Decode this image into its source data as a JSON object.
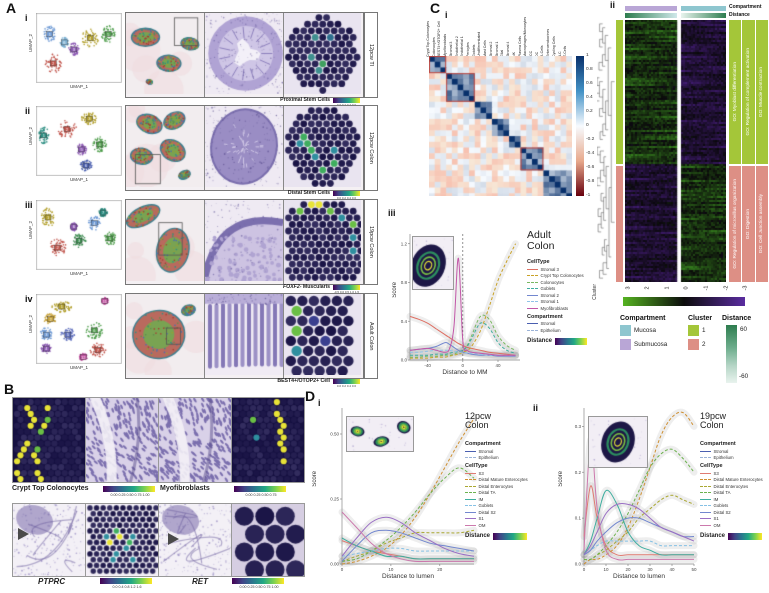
{
  "figure": {
    "panel_a": {
      "label": "A",
      "umap_xlabel": "UMAP_1",
      "umap_ylabel": "UMAP_2",
      "rows": [
        {
          "numeral": "i",
          "sample": "12pcw TI",
          "colorbar_gene": "",
          "colorbar_label": "Proximal Stem Cells",
          "colorbar_ticks": "0.0 0.2 0.4 0.6"
        },
        {
          "numeral": "ii",
          "sample": "12pcw Colon",
          "colorbar_gene": "",
          "colorbar_label": "Distal Stem Cells",
          "colorbar_ticks": "0.0 0.2 0.4 0.6"
        },
        {
          "numeral": "iii",
          "sample": "19pcw Colon",
          "colorbar_gene": "FOXF2-",
          "colorbar_label": " Muscularis",
          "colorbar_ticks": "-0.5 0.0 0.5 1.0 1.5"
        },
        {
          "numeral": "iv",
          "sample": "Adult Colon",
          "colorbar_gene": "",
          "colorbar_label": "BEST4+/OTOP2+ Cell",
          "colorbar_ticks": "0.0 0.2 0.4 0.6"
        }
      ]
    },
    "panel_b": {
      "label": "B",
      "captions": [
        {
          "label": "Crypt Top Colonocytes",
          "italic": false,
          "ticks": "0.00 0.25 0.50 0.75 1.00"
        },
        {
          "label": "Myofibroblasts",
          "italic": false,
          "ticks": "0.00 0.25 0.50 0.75"
        },
        {
          "label": "PTPRC",
          "italic": true,
          "ticks": "0.0 0.4 0.8 1.2 1.6"
        },
        {
          "label": "RET",
          "italic": true,
          "ticks": "0.00 0.25 0.50 0.75 1.00"
        }
      ]
    },
    "panel_c": {
      "label": "C",
      "i": {
        "numeral": "i",
        "cell_types": [
          "Crypt Top Colonocytes",
          "Colonocytes",
          "BEST4+/OTOP2+ Cell",
          "Myofibroblasts",
          "Stromal 3",
          "Endothelial 2",
          "Endothelial 1",
          "Pericytes",
          "Goblets",
          "Undifferentiated",
          "Mast Cells",
          "Stromal 2",
          "Stromal 1",
          "Glial",
          "Stromal 4",
          "NK",
          "Plasma Cells",
          "Macrophages/Monocytes",
          "ICC",
          "DC",
          "B-Cells",
          "Enteroendocrines",
          "Cycling Cells",
          "ILC",
          "T-Cells"
        ],
        "colorbar_ticks": [
          "1",
          "0.8",
          "0.6",
          "0.4",
          "0.2",
          "0",
          "-0.2",
          "-0.4",
          "-0.6",
          "-0.8",
          "-1"
        ]
      },
      "ii": {
        "numeral": "ii",
        "annotation_compartment": "Compartment",
        "annotation_distance": "Distance",
        "go_cluster1": [
          "GO: Myoblast differentiation",
          "GO: Regulation of complement activation",
          "GO: Muscle contraction"
        ],
        "go_cluster2": [
          "GO: Regulation of microvillus organization",
          "GO: Digestion",
          "GO: Cell Junction assembly"
        ],
        "scale_axis_label": "Cluster",
        "scale_ticks": [
          "3",
          "2",
          "1",
          "0",
          "-1",
          "-2",
          "-3"
        ],
        "legend_compartment_title": "Compartment",
        "legend_compartment_items": [
          {
            "label": "Mucosa",
            "color": "#8ec6cf"
          },
          {
            "label": "Submucosa",
            "color": "#b9a6d6"
          }
        ],
        "legend_cluster_title": "Cluster",
        "legend_cluster_items": [
          {
            "label": "1",
            "color": "#a4c639"
          },
          {
            "label": "2",
            "color": "#dd8f85"
          }
        ],
        "legend_distance_title": "Distance",
        "legend_distance_max": "60",
        "legend_distance_min": "-60"
      },
      "iii": {
        "numeral": "iii",
        "title": "Adult Colon",
        "ylabel": "Score",
        "xlabel": "Distance to MM",
        "legend_celltype_title": "CellType",
        "legend_compartment_title": "Compartment",
        "compartment_items": [
          {
            "label": "Stromal",
            "color": "#4a5fb0",
            "dash": false
          },
          {
            "label": "Epithelium",
            "color": "#9bb3d8",
            "dash": true
          }
        ],
        "legend_distance_title": "Distance"
      }
    },
    "panel_d": {
      "label": "D",
      "i": {
        "numeral": "i",
        "title": "12pcw Colon",
        "ylabel": "Score",
        "xlabel": "Distance to lumen"
      },
      "ii": {
        "numeral": "ii",
        "title": "19pcw Colon",
        "ylabel": "Score",
        "xlabel": "Distance to lumen"
      },
      "legend_compartment_title": "Compartment",
      "legend_celltype_title": "CellType",
      "legend_distance_title": "Distance",
      "compartment_items": [
        {
          "label": "Stromal",
          "color": "#4a5fb0",
          "dash": false
        },
        {
          "label": "Epithelium",
          "color": "#9bb3d8",
          "dash": true
        }
      ]
    }
  },
  "chart_data": [
    {
      "id": "celltype_correlation",
      "type": "heatmap",
      "title": "",
      "labels": [
        "Crypt Top Colonocytes",
        "Colonocytes",
        "BEST4+/OTOP2+ Cell",
        "Myofibroblasts",
        "Stromal 3",
        "Endothelial 2",
        "Endothelial 1",
        "Pericytes",
        "Goblets",
        "Undifferentiated",
        "Mast Cells",
        "Stromal 2",
        "Stromal 1",
        "Glial",
        "Stromal 4",
        "NK",
        "Plasma Cells",
        "Macrophages/Monocytes",
        "ICC",
        "DC",
        "B-Cells",
        "Enteroendocrines",
        "Cycling Cells",
        "ILC",
        "T-Cells"
      ],
      "colorbar_range": [
        1,
        -1
      ],
      "highlight_blocks": [
        [
          0,
          3
        ],
        [
          3,
          5
        ],
        [
          16,
          4
        ]
      ]
    },
    {
      "id": "go_module_heatmap",
      "type": "heatmap",
      "column_groups": [
        "Submucosa",
        "Mucosa"
      ],
      "row_clusters": [
        {
          "cluster": "1",
          "go_terms": [
            "GO: Myoblast differentiation",
            "GO: Regulation of complement activation",
            "GO: Muscle contraction"
          ]
        },
        {
          "cluster": "2",
          "go_terms": [
            "GO: Regulation of microvillus organization",
            "GO: Digestion",
            "GO: Cell Junction assembly"
          ]
        }
      ],
      "value_range": [
        3,
        -3
      ],
      "distance_range": [
        60,
        -60
      ]
    },
    {
      "id": "adult_colon_profile",
      "type": "line",
      "title": "Adult Colon",
      "xlabel": "Distance to MM",
      "ylabel": "Score",
      "xlim": [
        -60,
        65
      ],
      "ylim": [
        0,
        1.3
      ],
      "x_ticks": [
        -40,
        0,
        40
      ],
      "y_ticks": [
        0.0,
        0.4,
        0.8,
        1.2
      ],
      "y_tick_decimals": 1,
      "vline_x": 0,
      "x": [
        -60,
        -50,
        -40,
        -30,
        -20,
        -15,
        -10,
        -5,
        0,
        5,
        10,
        20,
        30,
        40,
        50,
        60
      ],
      "series": [
        {
          "name": "Stromal 3",
          "color": "#de6f63",
          "dash": false,
          "y": [
            0.45,
            0.42,
            0.38,
            0.32,
            0.26,
            0.23,
            0.2,
            0.17,
            0.15,
            0.13,
            0.12,
            0.1,
            0.08,
            0.07,
            0.06,
            0.05
          ]
        },
        {
          "name": "Crypt Top Colonocytes",
          "color": "#c9a227",
          "dash": true,
          "y": [
            0.02,
            0.02,
            0.02,
            0.03,
            0.03,
            0.04,
            0.05,
            0.06,
            0.08,
            0.1,
            0.14,
            0.3,
            0.55,
            0.82,
            1.02,
            1.2
          ]
        },
        {
          "name": "Colonocytes",
          "color": "#79b861",
          "dash": true,
          "y": [
            0.03,
            0.03,
            0.04,
            0.04,
            0.05,
            0.05,
            0.06,
            0.08,
            0.1,
            0.15,
            0.25,
            0.45,
            0.42,
            0.25,
            0.15,
            0.1
          ]
        },
        {
          "name": "Goblets",
          "color": "#3fae9f",
          "dash": true,
          "y": [
            0.05,
            0.05,
            0.05,
            0.06,
            0.06,
            0.07,
            0.08,
            0.09,
            0.1,
            0.14,
            0.22,
            0.38,
            0.33,
            0.18,
            0.1,
            0.07
          ]
        },
        {
          "name": "Stromal 2",
          "color": "#7287cf",
          "dash": false,
          "y": [
            0.1,
            0.11,
            0.12,
            0.14,
            0.18,
            0.16,
            0.13,
            0.1,
            0.08,
            0.07,
            0.06,
            0.05,
            0.05,
            0.04,
            0.04,
            0.04
          ]
        },
        {
          "name": "Stromal 1",
          "color": "#8fc3e8",
          "dash": true,
          "y": [
            0.08,
            0.08,
            0.09,
            0.1,
            0.1,
            0.1,
            0.09,
            0.08,
            0.08,
            0.07,
            0.07,
            0.06,
            0.05,
            0.05,
            0.05,
            0.05
          ]
        },
        {
          "name": "Myofibroblasts",
          "color": "#c257a8",
          "dash": false,
          "y": [
            0.1,
            0.11,
            0.12,
            0.1,
            0.08,
            0.12,
            0.35,
            1.05,
            0.2,
            0.1,
            0.08,
            0.07,
            0.06,
            0.05,
            0.05,
            0.05
          ]
        }
      ]
    },
    {
      "id": "colon_12pcw_profile",
      "type": "line",
      "title": "12pcw Colon",
      "xlabel": "Distance to lumen",
      "ylabel": "Score",
      "xlim": [
        0,
        27
      ],
      "ylim": [
        0,
        0.6
      ],
      "x_ticks": [
        0,
        10,
        20
      ],
      "y_ticks": [
        0.0,
        0.25,
        0.5
      ],
      "y_tick_decimals": 2,
      "x": [
        0,
        3,
        6,
        9,
        12,
        15,
        18,
        21,
        24,
        27
      ],
      "series": [
        {
          "name": "S3",
          "color": "#e07b72",
          "dash": false,
          "y": [
            0.09,
            0.07,
            0.05,
            0.04,
            0.03,
            0.02,
            0.02,
            0.02,
            0.02,
            0.02
          ]
        },
        {
          "name": "Distal Mature Enterocytes",
          "color": "#cf9032",
          "dash": true,
          "y": [
            0.0,
            0.01,
            0.03,
            0.06,
            0.11,
            0.18,
            0.27,
            0.37,
            0.47,
            0.56
          ]
        },
        {
          "name": "Distal Enterocytes",
          "color": "#aaa832",
          "dash": true,
          "y": [
            0.01,
            0.03,
            0.05,
            0.08,
            0.1,
            0.12,
            0.12,
            0.12,
            0.12,
            0.13
          ]
        },
        {
          "name": "Distal TA",
          "color": "#6cb24e",
          "dash": true,
          "y": [
            0.01,
            0.02,
            0.05,
            0.09,
            0.14,
            0.2,
            0.27,
            0.33,
            0.37,
            0.33
          ]
        },
        {
          "name": "IM",
          "color": "#3fae9f",
          "dash": false,
          "y": [
            0.1,
            0.07,
            0.05,
            0.03,
            0.03,
            0.02,
            0.02,
            0.02,
            0.02,
            0.02
          ]
        },
        {
          "name": "Goblets",
          "color": "#85c1e5",
          "dash": true,
          "y": [
            0.03,
            0.04,
            0.05,
            0.06,
            0.06,
            0.05,
            0.05,
            0.05,
            0.05,
            0.05
          ]
        },
        {
          "name": "Distal S2",
          "color": "#7287cf",
          "dash": false,
          "y": [
            0.01,
            0.07,
            0.12,
            0.13,
            0.12,
            0.1,
            0.08,
            0.07,
            0.06,
            0.05
          ]
        },
        {
          "name": "S1",
          "color": "#9a6fc4",
          "dash": false,
          "y": [
            0.03,
            0.1,
            0.16,
            0.18,
            0.16,
            0.12,
            0.09,
            0.06,
            0.04,
            0.03
          ]
        },
        {
          "name": "OM",
          "color": "#cc79ad",
          "dash": false,
          "y": [
            0.2,
            0.14,
            0.08,
            0.04,
            0.02,
            0.01,
            0.01,
            0.01,
            0.01,
            0.01
          ]
        }
      ]
    },
    {
      "id": "colon_19pcw_profile",
      "type": "line",
      "title": "19pcw Colon",
      "xlabel": "Distance to lumen",
      "ylabel": "Score",
      "xlim": [
        0,
        50
      ],
      "ylim": [
        0,
        0.34
      ],
      "x_ticks": [
        0,
        10,
        20,
        30,
        40,
        50
      ],
      "y_ticks": [
        0.0,
        0.1,
        0.2,
        0.3
      ],
      "y_tick_decimals": 1,
      "x": [
        0,
        3,
        6,
        10,
        15,
        20,
        25,
        30,
        35,
        40,
        45,
        50
      ],
      "series": [
        {
          "name": "S3",
          "color": "#e07b72",
          "dash": false,
          "y": [
            0.06,
            0.17,
            0.1,
            0.04,
            0.02,
            0.02,
            0.02,
            0.02,
            0.02,
            0.02,
            0.02,
            0.02
          ]
        },
        {
          "name": "Distal Mature Enterocytes",
          "color": "#cf9032",
          "dash": true,
          "y": [
            0.0,
            0.01,
            0.01,
            0.02,
            0.04,
            0.08,
            0.14,
            0.21,
            0.28,
            0.32,
            0.33,
            0.3
          ]
        },
        {
          "name": "Distal Enterocytes",
          "color": "#aaa832",
          "dash": true,
          "y": [
            0.01,
            0.01,
            0.02,
            0.03,
            0.05,
            0.07,
            0.1,
            0.12,
            0.14,
            0.15,
            0.14,
            0.13
          ]
        },
        {
          "name": "Distal TA",
          "color": "#6cb24e",
          "dash": true,
          "y": [
            0.01,
            0.01,
            0.02,
            0.04,
            0.07,
            0.11,
            0.16,
            0.21,
            0.24,
            0.25,
            0.23,
            0.2
          ]
        },
        {
          "name": "IM",
          "color": "#3fae9f",
          "dash": false,
          "y": [
            0.02,
            0.05,
            0.1,
            0.16,
            0.13,
            0.07,
            0.04,
            0.03,
            0.02,
            0.02,
            0.02,
            0.02
          ]
        },
        {
          "name": "Goblets",
          "color": "#85c1e5",
          "dash": true,
          "y": [
            0.02,
            0.03,
            0.04,
            0.05,
            0.05,
            0.05,
            0.05,
            0.05,
            0.04,
            0.04,
            0.04,
            0.04
          ]
        },
        {
          "name": "Distal S2",
          "color": "#7287cf",
          "dash": false,
          "y": [
            0.02,
            0.03,
            0.05,
            0.07,
            0.09,
            0.1,
            0.1,
            0.09,
            0.08,
            0.07,
            0.06,
            0.06
          ]
        },
        {
          "name": "S1",
          "color": "#9a6fc4",
          "dash": false,
          "y": [
            0.02,
            0.04,
            0.07,
            0.11,
            0.13,
            0.13,
            0.12,
            0.1,
            0.08,
            0.07,
            0.06,
            0.05
          ]
        },
        {
          "name": "OM",
          "color": "#cc79ad",
          "dash": false,
          "y": [
            0.03,
            0.27,
            0.12,
            0.03,
            0.01,
            0.01,
            0.01,
            0.01,
            0.01,
            0.01,
            0.01,
            0.01
          ]
        }
      ]
    }
  ]
}
